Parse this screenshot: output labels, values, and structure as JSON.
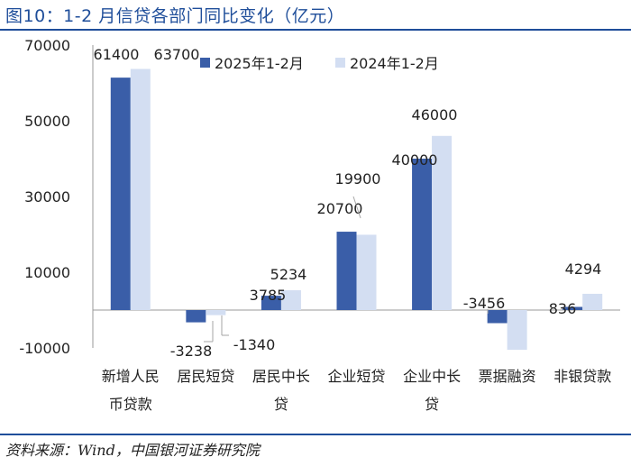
{
  "header": {
    "title": "图10：1-2 月信贷各部门同比变化（亿元）"
  },
  "footer": {
    "source": "资料来源：Wind，中国银河证券研究院"
  },
  "colors": {
    "accent": "#1f4e9a",
    "series_2025": "#3a5ea8",
    "series_2024": "#d3def2",
    "axis": "#999999",
    "leader": "#a6a6a6"
  },
  "chart_data": {
    "type": "bar",
    "title": "",
    "xlabel": "",
    "ylabel": "",
    "ylim": [
      -10000,
      70000
    ],
    "yticks": [
      -10000,
      10000,
      30000,
      50000,
      70000
    ],
    "ytick_labels": [
      "-10000",
      "10000",
      "30000",
      "50000",
      "70000"
    ],
    "grid": false,
    "legend_position": "top-right",
    "categories": [
      [
        "新增人民",
        "币贷款"
      ],
      [
        "居民短贷"
      ],
      [
        "居民中长",
        "贷"
      ],
      [
        "企业短贷"
      ],
      [
        "企业中长",
        "贷"
      ],
      [
        "票据融资"
      ],
      [
        "非银贷款"
      ]
    ],
    "series": [
      {
        "name": "2025年1-2月",
        "values": [
          61400,
          -3238,
          3785,
          20700,
          40000,
          -3456,
          836
        ],
        "labels": [
          "61400",
          "-3238",
          "3785",
          "20700",
          "40000",
          "-3456",
          "836"
        ]
      },
      {
        "name": "2024年1-2月",
        "values": [
          63700,
          -1340,
          5234,
          19900,
          46000,
          -10500,
          4294
        ],
        "labels": [
          "63700",
          "-1340",
          "5234",
          "19900",
          "46000",
          "",
          "4294"
        ]
      }
    ]
  }
}
